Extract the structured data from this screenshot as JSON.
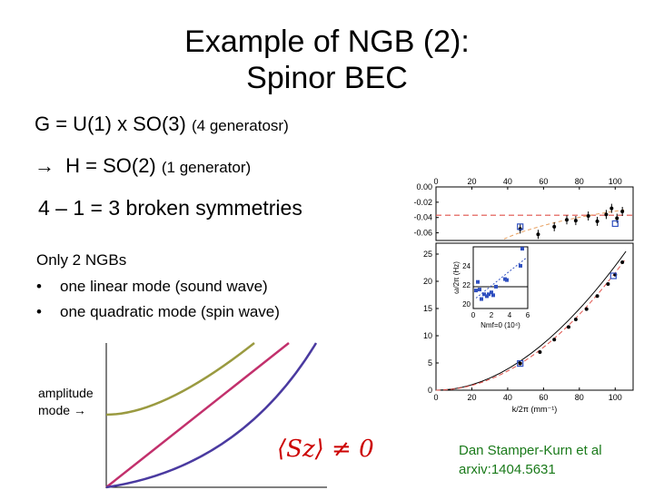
{
  "slide": {
    "title_line1": "Example of NGB (2):",
    "title_line2": "Spinor BEC",
    "g_line": "G = U(1) x SO(3)",
    "g_note": "(4 generatosr)",
    "h_arrow": "→",
    "h_line": "H = SO(2)",
    "h_note": "(1 generator)",
    "broken": "4 – 1 = 3 broken symmetries",
    "ngb_heading": "Only 2 NGBs",
    "bullets": [
      "one linear mode (sound wave)",
      "one quadratic mode (spin wave)"
    ],
    "bullet_char": "•",
    "amp_label_1": "amplitude",
    "amp_label_2": "mode →",
    "formula": "⟨Sz⟩ ≠ 0",
    "credit_line1": "Dan Stamper-Kurn et al",
    "credit_line2": "arxiv:1404.5631"
  },
  "colors": {
    "olive": "#9a9a40",
    "magenta": "#c2306c",
    "purple": "#4a3aa0",
    "green_text": "#1a7a1a",
    "red": "#cc0000"
  },
  "sketch": {
    "curves": [
      {
        "name": "amplitude-mode",
        "color": "olive",
        "shape": "gapped"
      },
      {
        "name": "linear-mode",
        "color": "magenta",
        "shape": "linear"
      },
      {
        "name": "quadratic-mode",
        "color": "purple",
        "shape": "quadratic"
      }
    ]
  },
  "chart_data": {
    "type": "scatter",
    "xlabel": "k/2π (mm⁻¹)",
    "x_ticks_top": [
      "0",
      "20",
      "40",
      "60",
      "80",
      "100"
    ],
    "x_ticks_bottom": [
      "0",
      "20",
      "40",
      "60",
      "80",
      "100"
    ],
    "top_panel": {
      "y_ticks": [
        "0.00",
        "-0.02",
        "-0.04",
        "-0.06"
      ],
      "ylim": [
        -0.07,
        0.0
      ],
      "dashed_level": -0.037,
      "points": [
        [
          47,
          -0.055
        ],
        [
          57,
          -0.062
        ],
        [
          66,
          -0.052
        ],
        [
          73,
          -0.043
        ],
        [
          78,
          -0.044
        ],
        [
          85,
          -0.038
        ],
        [
          90,
          -0.045
        ],
        [
          95,
          -0.036
        ],
        [
          98,
          -0.028
        ],
        [
          101,
          -0.041
        ],
        [
          104,
          -0.032
        ]
      ],
      "open_squares": [
        [
          47,
          -0.052
        ],
        [
          100,
          -0.048
        ]
      ]
    },
    "bottom_panel": {
      "y_ticks": [
        "0",
        "5",
        "10",
        "15",
        "20",
        "25"
      ],
      "ylim": [
        0,
        27
      ],
      "points": [
        [
          47,
          4.9
        ],
        [
          58,
          7.0
        ],
        [
          66,
          9.3
        ],
        [
          74,
          11.6
        ],
        [
          78,
          13.0
        ],
        [
          84,
          14.9
        ],
        [
          90,
          17.3
        ],
        [
          96,
          19.5
        ],
        [
          100,
          21.2
        ],
        [
          104,
          23.5
        ]
      ],
      "open_squares": [
        [
          47,
          4.9
        ],
        [
          99,
          21.0
        ]
      ]
    },
    "inset": {
      "ylabel": "ω/2π (Hz)",
      "xlabel": "Nmf=0 (10⁴)",
      "x_ticks": [
        "0",
        "2",
        "4",
        "6"
      ],
      "y_ticks": [
        "20",
        "22",
        "24"
      ],
      "points": [
        [
          0.3,
          21.4
        ],
        [
          0.5,
          22.3
        ],
        [
          0.7,
          21.5
        ],
        [
          0.9,
          20.5
        ],
        [
          1.2,
          21.0
        ],
        [
          1.5,
          20.8
        ],
        [
          1.7,
          21.0
        ],
        [
          2.0,
          21.2
        ],
        [
          2.2,
          20.9
        ],
        [
          2.5,
          21.8
        ],
        [
          3.5,
          22.6
        ],
        [
          3.7,
          22.5
        ],
        [
          5.2,
          24.0
        ],
        [
          5.4,
          25.8
        ]
      ],
      "solid_level": 21.8
    }
  }
}
